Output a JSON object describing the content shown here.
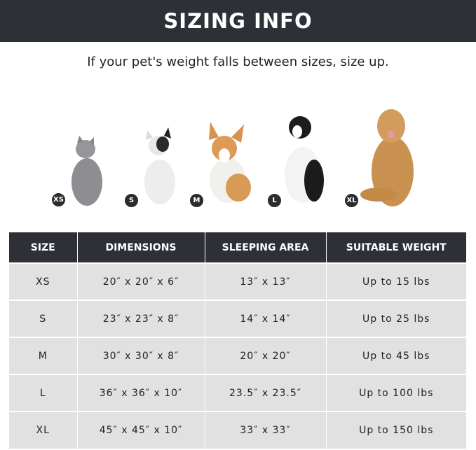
{
  "banner": {
    "title": "SIZING INFO"
  },
  "subtitle": "If your pet's weight falls between sizes, size up.",
  "pets": [
    {
      "size": "XS",
      "animal": "cat"
    },
    {
      "size": "S",
      "animal": "french-bulldog"
    },
    {
      "size": "M",
      "animal": "corgi"
    },
    {
      "size": "L",
      "animal": "border-collie"
    },
    {
      "size": "XL",
      "animal": "golden-retriever"
    }
  ],
  "table": {
    "headers": [
      "SIZE",
      "DIMENSIONS",
      "SLEEPING AREA",
      "SUITABLE WEIGHT"
    ],
    "rows": [
      [
        "XS",
        "20″ x 20″ x 6″",
        "13″ x 13″",
        "Up to 15 lbs"
      ],
      [
        "S",
        "23″ x 23″ x 8″",
        "14″ x 14″",
        "Up to 25 lbs"
      ],
      [
        "M",
        "30″ x 30″ x 8″",
        "20″ x 20″",
        "Up to 45 lbs"
      ],
      [
        "L",
        "36″ x 36″ x 10″",
        "23.5″ x 23.5″",
        "Up to 100 lbs"
      ],
      [
        "XL",
        "45″ x 45″ x 10″",
        "33″ x 33″",
        "Up to 150 lbs"
      ]
    ]
  },
  "colors": {
    "header": "#2e3037",
    "row": "#e1e1e1"
  }
}
